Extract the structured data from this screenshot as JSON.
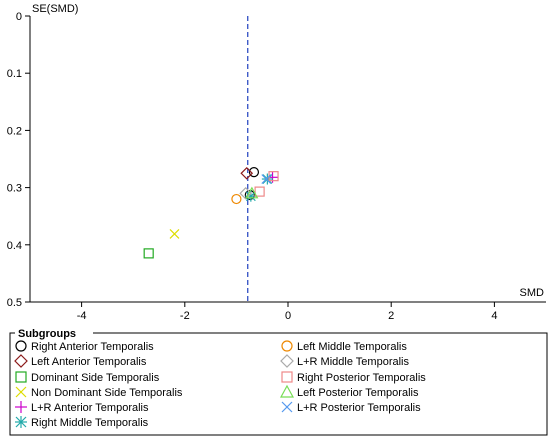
{
  "chart_data": {
    "type": "scatter",
    "title": "",
    "xlabel": "SMD",
    "ylabel": "SE(SMD)",
    "xlim": [
      -5,
      5
    ],
    "ylim": [
      0,
      0.5
    ],
    "y_reversed": true,
    "x_ticks": [
      -4,
      -2,
      0,
      2,
      4
    ],
    "y_ticks": [
      0,
      0.1,
      0.2,
      0.3,
      0.4,
      0.5
    ],
    "x_tick_labels": [
      "-4",
      "-2",
      "0",
      "2",
      "4"
    ],
    "y_tick_labels": [
      "0",
      "0.1",
      "0.2",
      "0.3",
      "0.4",
      "0.5"
    ],
    "reference_line_x": -0.78,
    "grid": false,
    "legend": {
      "title": "Subgroups",
      "placement": "bottom"
    },
    "series": [
      {
        "name": "Right Anterior Temporalis",
        "marker": "circle",
        "color": "#000000",
        "points": [
          [
            -0.66,
            0.273
          ],
          [
            -0.74,
            0.313
          ]
        ]
      },
      {
        "name": "Left Anterior Temporalis",
        "marker": "diamond",
        "color": "#8b1a1a",
        "points": [
          [
            -0.8,
            0.275
          ]
        ]
      },
      {
        "name": "Dominant Side Temporalis",
        "marker": "square",
        "color": "#22aa22",
        "points": [
          [
            -2.7,
            0.415
          ]
        ]
      },
      {
        "name": "Non Dominant Side Temporalis",
        "marker": "x",
        "color": "#dddd00",
        "points": [
          [
            -2.2,
            0.381
          ]
        ]
      },
      {
        "name": "L+R Anterior Temporalis",
        "marker": "plus",
        "color": "#cc00cc",
        "points": [
          [
            -0.3,
            0.282
          ]
        ]
      },
      {
        "name": "Right Middle Temporalis",
        "marker": "asterisk",
        "color": "#22aaaa",
        "points": [
          [
            -0.72,
            0.315
          ],
          [
            -0.4,
            0.285
          ]
        ]
      },
      {
        "name": "Left Middle Temporalis",
        "marker": "circle",
        "color": "#ee8800",
        "points": [
          [
            -1.0,
            0.32
          ]
        ]
      },
      {
        "name": "L+R Middle Temporalis",
        "marker": "diamond",
        "color": "#aaaaaa",
        "points": [
          [
            -0.82,
            0.31
          ]
        ]
      },
      {
        "name": "Right Posterior Temporalis",
        "marker": "square",
        "color": "#ee8888",
        "points": [
          [
            -0.28,
            0.28
          ],
          [
            -0.55,
            0.307
          ]
        ]
      },
      {
        "name": "Left Posterior Temporalis",
        "marker": "triangle",
        "color": "#77dd55",
        "points": [
          [
            -0.7,
            0.31
          ]
        ]
      },
      {
        "name": "L+R Posterior Temporalis",
        "marker": "x",
        "color": "#5599ee",
        "points": [
          [
            -0.42,
            0.285
          ]
        ]
      }
    ]
  }
}
